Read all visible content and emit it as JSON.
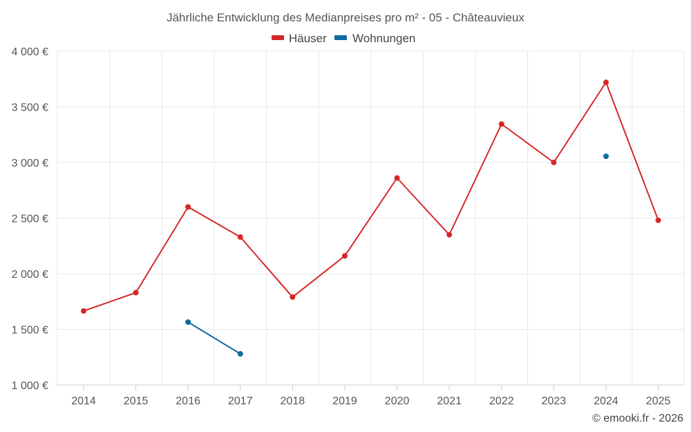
{
  "chart_data": {
    "type": "line",
    "title": "Jährliche Entwicklung des Medianpreises pro m² - 05 - Châteauvieux",
    "x": [
      "2014",
      "2015",
      "2016",
      "2017",
      "2018",
      "2019",
      "2020",
      "2021",
      "2022",
      "2023",
      "2024",
      "2025"
    ],
    "y_ticks": [
      "1 000 €",
      "1 500 €",
      "2 000 €",
      "2 500 €",
      "3 000 €",
      "3 500 €",
      "4 000 €"
    ],
    "ylim": [
      1000,
      4000
    ],
    "grid": true,
    "legend_position": "top-center",
    "series": [
      {
        "name": "Häuser",
        "color": "#d62728",
        "values": [
          1665,
          1830,
          2600,
          2330,
          1790,
          2160,
          2860,
          2350,
          3345,
          3000,
          3720,
          2480
        ]
      },
      {
        "name": "Wohnungen",
        "color": "#0e6aa3",
        "values": [
          null,
          null,
          1565,
          1280,
          null,
          null,
          null,
          null,
          null,
          null,
          3055,
          null
        ]
      }
    ],
    "credit": "© emooki.fr - 2026"
  }
}
